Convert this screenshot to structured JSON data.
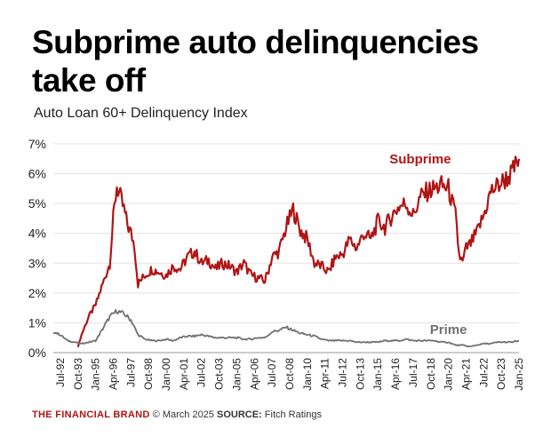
{
  "title": "Subprime auto delinquencies take off",
  "subtitle": "Auto Loan 60+ Delinquency Index",
  "footer": {
    "brand": "THE FINANCIAL BRAND",
    "date": "© March 2025",
    "source_label": "SOURCE:",
    "source": "Fitch Ratings"
  },
  "colors": {
    "subprime": "#b01515",
    "prime": "#707070",
    "grid": "#e3e3e3",
    "brand": "#b01515"
  },
  "chart_data": {
    "type": "line",
    "title": "Subprime auto delinquencies take off",
    "subtitle": "Auto Loan 60+ Delinquency Index",
    "xlabel": "",
    "ylabel": "",
    "ylim": [
      0,
      7
    ],
    "y_ticks": [
      "0%",
      "1%",
      "2%",
      "3%",
      "4%",
      "5%",
      "6%",
      "7%"
    ],
    "x_ticks": [
      "Jul-92",
      "Oct-93",
      "Jan-95",
      "Apr-96",
      "Jul-97",
      "Oct-98",
      "Jan-00",
      "Apr-01",
      "Jul-02",
      "Oct-03",
      "Jan-05",
      "Apr-06",
      "Jul-07",
      "Oct-08",
      "Jan-10",
      "Apr-11",
      "Jul-12",
      "Oct-13",
      "Jan-15",
      "Apr-16",
      "Jul-17",
      "Oct-18",
      "Jan-20",
      "Apr-21",
      "Jul-22",
      "Oct-23",
      "Jan-25"
    ],
    "grid": "horizontal",
    "series": [
      {
        "name": "Subprime",
        "x": [
          "Oct-93",
          "Jan-94",
          "Jul-94",
          "Jan-95",
          "Jul-95",
          "Jan-96",
          "Apr-96",
          "Jul-96",
          "Oct-96",
          "Jan-97",
          "Apr-97",
          "Jul-97",
          "Oct-97",
          "Jan-98",
          "Jul-98",
          "Jan-99",
          "Jul-99",
          "Jan-00",
          "Jul-00",
          "Jan-01",
          "Jul-01",
          "Jan-02",
          "Jul-02",
          "Jan-03",
          "Jul-03",
          "Jan-04",
          "Jul-04",
          "Jan-05",
          "Jul-05",
          "Jan-06",
          "Jul-06",
          "Jan-07",
          "Jul-07",
          "Jan-08",
          "Jul-08",
          "Jan-09",
          "Jul-09",
          "Jan-10",
          "Jul-10",
          "Jan-11",
          "Jul-11",
          "Jan-12",
          "Jul-12",
          "Jan-13",
          "Jul-13",
          "Jan-14",
          "Jul-14",
          "Jan-15",
          "Jul-15",
          "Jan-16",
          "Jul-16",
          "Jan-17",
          "Jul-17",
          "Jan-18",
          "Jul-18",
          "Jan-19",
          "Jul-19",
          "Jan-20",
          "Jul-20",
          "Oct-20",
          "Jan-21",
          "Apr-21",
          "Jul-21",
          "Jan-22",
          "Jul-22",
          "Jan-23",
          "Jul-23",
          "Jan-24",
          "Jul-24",
          "Jan-25"
        ],
        "values": [
          0.2,
          0.6,
          1.2,
          1.6,
          2.3,
          3.0,
          4.5,
          5.6,
          5.2,
          4.8,
          4.3,
          4.0,
          3.6,
          2.3,
          2.6,
          2.8,
          2.7,
          2.6,
          2.9,
          2.8,
          3.2,
          3.4,
          3.0,
          3.1,
          2.8,
          3.0,
          2.9,
          2.7,
          3.0,
          2.6,
          2.5,
          2.4,
          3.2,
          3.4,
          4.2,
          4.8,
          4.1,
          3.8,
          3.0,
          2.9,
          2.7,
          3.2,
          3.3,
          3.8,
          3.5,
          4.0,
          3.8,
          4.4,
          4.2,
          4.6,
          4.9,
          5.0,
          4.6,
          5.2,
          5.4,
          5.5,
          5.6,
          5.5,
          4.6,
          3.3,
          3.0,
          3.5,
          3.6,
          4.0,
          4.6,
          5.4,
          5.6,
          5.8,
          6.0,
          6.5
        ]
      },
      {
        "name": "Prime",
        "x": [
          "Jan-92",
          "Jul-92",
          "Jan-93",
          "Jul-93",
          "Jan-94",
          "Jul-94",
          "Jan-95",
          "Jul-95",
          "Jan-96",
          "Jul-96",
          "Jan-97",
          "Jul-97",
          "Jan-98",
          "Jul-98",
          "Jan-99",
          "Jul-99",
          "Jan-00",
          "Jul-00",
          "Jan-01",
          "Jul-01",
          "Jan-02",
          "Jul-02",
          "Jan-03",
          "Jul-03",
          "Jan-04",
          "Jul-04",
          "Jan-05",
          "Jul-05",
          "Jan-06",
          "Jul-06",
          "Jan-07",
          "Jul-07",
          "Jan-08",
          "Jul-08",
          "Jan-09",
          "Jul-09",
          "Jan-10",
          "Jul-10",
          "Jan-11",
          "Jul-11",
          "Jan-12",
          "Jul-12",
          "Jan-13",
          "Jul-13",
          "Jan-14",
          "Jul-14",
          "Jan-15",
          "Jul-15",
          "Jan-16",
          "Jul-16",
          "Jan-17",
          "Jul-17",
          "Jan-18",
          "Jul-18",
          "Jan-19",
          "Jul-19",
          "Jan-20",
          "Jul-20",
          "Jan-21",
          "Jul-21",
          "Jan-22",
          "Jul-22",
          "Jan-23",
          "Jul-23",
          "Jan-24",
          "Jul-24",
          "Jan-25"
        ],
        "values": [
          0.7,
          0.6,
          0.4,
          0.35,
          0.3,
          0.35,
          0.4,
          0.8,
          1.2,
          1.4,
          1.3,
          1.1,
          0.6,
          0.45,
          0.4,
          0.4,
          0.45,
          0.4,
          0.5,
          0.55,
          0.55,
          0.6,
          0.55,
          0.5,
          0.5,
          0.5,
          0.5,
          0.45,
          0.45,
          0.5,
          0.5,
          0.7,
          0.75,
          0.85,
          0.75,
          0.65,
          0.6,
          0.55,
          0.45,
          0.4,
          0.4,
          0.4,
          0.4,
          0.35,
          0.35,
          0.35,
          0.35,
          0.4,
          0.4,
          0.4,
          0.45,
          0.4,
          0.4,
          0.4,
          0.4,
          0.35,
          0.35,
          0.25,
          0.25,
          0.2,
          0.25,
          0.3,
          0.3,
          0.35,
          0.35,
          0.35,
          0.4
        ]
      }
    ],
    "annotations": [
      "Subprime",
      "Prime"
    ]
  }
}
